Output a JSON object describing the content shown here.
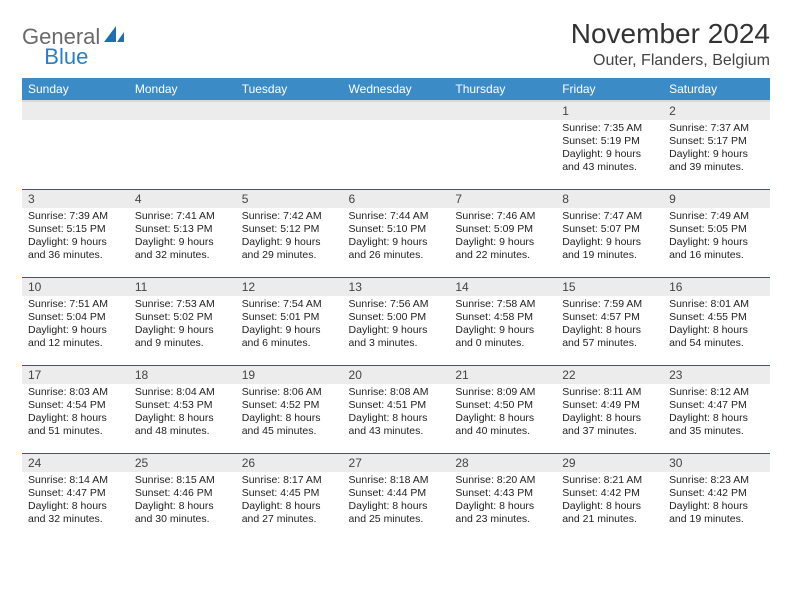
{
  "logo": {
    "part1": "General",
    "part2": "Blue"
  },
  "title": "November 2024",
  "location": "Outer, Flanders, Belgium",
  "colors": {
    "header_bg": "#3b8bc6",
    "header_fg": "#ffffff",
    "daynum_bg": "#ececec",
    "row_border": "#2d5c8a",
    "logo_gray": "#6a6a6a",
    "logo_blue": "#2a7fbf"
  },
  "weekdays": [
    "Sunday",
    "Monday",
    "Tuesday",
    "Wednesday",
    "Thursday",
    "Friday",
    "Saturday"
  ],
  "weeks": [
    [
      {
        "n": "",
        "sr": "",
        "ss": "",
        "dl": ""
      },
      {
        "n": "",
        "sr": "",
        "ss": "",
        "dl": ""
      },
      {
        "n": "",
        "sr": "",
        "ss": "",
        "dl": ""
      },
      {
        "n": "",
        "sr": "",
        "ss": "",
        "dl": ""
      },
      {
        "n": "",
        "sr": "",
        "ss": "",
        "dl": ""
      },
      {
        "n": "1",
        "sr": "Sunrise: 7:35 AM",
        "ss": "Sunset: 5:19 PM",
        "dl": "Daylight: 9 hours and 43 minutes."
      },
      {
        "n": "2",
        "sr": "Sunrise: 7:37 AM",
        "ss": "Sunset: 5:17 PM",
        "dl": "Daylight: 9 hours and 39 minutes."
      }
    ],
    [
      {
        "n": "3",
        "sr": "Sunrise: 7:39 AM",
        "ss": "Sunset: 5:15 PM",
        "dl": "Daylight: 9 hours and 36 minutes."
      },
      {
        "n": "4",
        "sr": "Sunrise: 7:41 AM",
        "ss": "Sunset: 5:13 PM",
        "dl": "Daylight: 9 hours and 32 minutes."
      },
      {
        "n": "5",
        "sr": "Sunrise: 7:42 AM",
        "ss": "Sunset: 5:12 PM",
        "dl": "Daylight: 9 hours and 29 minutes."
      },
      {
        "n": "6",
        "sr": "Sunrise: 7:44 AM",
        "ss": "Sunset: 5:10 PM",
        "dl": "Daylight: 9 hours and 26 minutes."
      },
      {
        "n": "7",
        "sr": "Sunrise: 7:46 AM",
        "ss": "Sunset: 5:09 PM",
        "dl": "Daylight: 9 hours and 22 minutes."
      },
      {
        "n": "8",
        "sr": "Sunrise: 7:47 AM",
        "ss": "Sunset: 5:07 PM",
        "dl": "Daylight: 9 hours and 19 minutes."
      },
      {
        "n": "9",
        "sr": "Sunrise: 7:49 AM",
        "ss": "Sunset: 5:05 PM",
        "dl": "Daylight: 9 hours and 16 minutes."
      }
    ],
    [
      {
        "n": "10",
        "sr": "Sunrise: 7:51 AM",
        "ss": "Sunset: 5:04 PM",
        "dl": "Daylight: 9 hours and 12 minutes."
      },
      {
        "n": "11",
        "sr": "Sunrise: 7:53 AM",
        "ss": "Sunset: 5:02 PM",
        "dl": "Daylight: 9 hours and 9 minutes."
      },
      {
        "n": "12",
        "sr": "Sunrise: 7:54 AM",
        "ss": "Sunset: 5:01 PM",
        "dl": "Daylight: 9 hours and 6 minutes."
      },
      {
        "n": "13",
        "sr": "Sunrise: 7:56 AM",
        "ss": "Sunset: 5:00 PM",
        "dl": "Daylight: 9 hours and 3 minutes."
      },
      {
        "n": "14",
        "sr": "Sunrise: 7:58 AM",
        "ss": "Sunset: 4:58 PM",
        "dl": "Daylight: 9 hours and 0 minutes."
      },
      {
        "n": "15",
        "sr": "Sunrise: 7:59 AM",
        "ss": "Sunset: 4:57 PM",
        "dl": "Daylight: 8 hours and 57 minutes."
      },
      {
        "n": "16",
        "sr": "Sunrise: 8:01 AM",
        "ss": "Sunset: 4:55 PM",
        "dl": "Daylight: 8 hours and 54 minutes."
      }
    ],
    [
      {
        "n": "17",
        "sr": "Sunrise: 8:03 AM",
        "ss": "Sunset: 4:54 PM",
        "dl": "Daylight: 8 hours and 51 minutes."
      },
      {
        "n": "18",
        "sr": "Sunrise: 8:04 AM",
        "ss": "Sunset: 4:53 PM",
        "dl": "Daylight: 8 hours and 48 minutes."
      },
      {
        "n": "19",
        "sr": "Sunrise: 8:06 AM",
        "ss": "Sunset: 4:52 PM",
        "dl": "Daylight: 8 hours and 45 minutes."
      },
      {
        "n": "20",
        "sr": "Sunrise: 8:08 AM",
        "ss": "Sunset: 4:51 PM",
        "dl": "Daylight: 8 hours and 43 minutes."
      },
      {
        "n": "21",
        "sr": "Sunrise: 8:09 AM",
        "ss": "Sunset: 4:50 PM",
        "dl": "Daylight: 8 hours and 40 minutes."
      },
      {
        "n": "22",
        "sr": "Sunrise: 8:11 AM",
        "ss": "Sunset: 4:49 PM",
        "dl": "Daylight: 8 hours and 37 minutes."
      },
      {
        "n": "23",
        "sr": "Sunrise: 8:12 AM",
        "ss": "Sunset: 4:47 PM",
        "dl": "Daylight: 8 hours and 35 minutes."
      }
    ],
    [
      {
        "n": "24",
        "sr": "Sunrise: 8:14 AM",
        "ss": "Sunset: 4:47 PM",
        "dl": "Daylight: 8 hours and 32 minutes."
      },
      {
        "n": "25",
        "sr": "Sunrise: 8:15 AM",
        "ss": "Sunset: 4:46 PM",
        "dl": "Daylight: 8 hours and 30 minutes."
      },
      {
        "n": "26",
        "sr": "Sunrise: 8:17 AM",
        "ss": "Sunset: 4:45 PM",
        "dl": "Daylight: 8 hours and 27 minutes."
      },
      {
        "n": "27",
        "sr": "Sunrise: 8:18 AM",
        "ss": "Sunset: 4:44 PM",
        "dl": "Daylight: 8 hours and 25 minutes."
      },
      {
        "n": "28",
        "sr": "Sunrise: 8:20 AM",
        "ss": "Sunset: 4:43 PM",
        "dl": "Daylight: 8 hours and 23 minutes."
      },
      {
        "n": "29",
        "sr": "Sunrise: 8:21 AM",
        "ss": "Sunset: 4:42 PM",
        "dl": "Daylight: 8 hours and 21 minutes."
      },
      {
        "n": "30",
        "sr": "Sunrise: 8:23 AM",
        "ss": "Sunset: 4:42 PM",
        "dl": "Daylight: 8 hours and 19 minutes."
      }
    ]
  ]
}
